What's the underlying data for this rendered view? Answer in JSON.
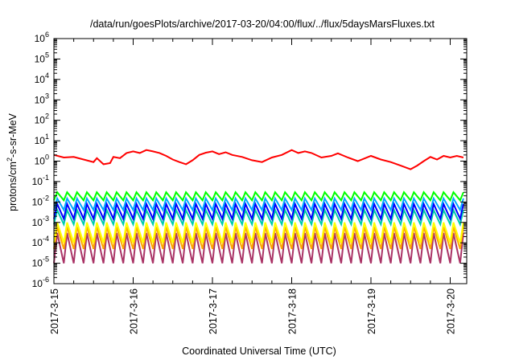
{
  "chart_data": {
    "type": "line",
    "title": "/data/run/goesPlots/archive/2017-03-20/04:00/flux/../flux/5daysMarsFluxes.txt",
    "xlabel": "Coordinated Universal Time (UTC)",
    "ylabel": {
      "base": "protons/cm",
      "sup": "2",
      "tail": "-s-sr-MeV"
    },
    "yscale": "log",
    "xlim": [
      "2017-03-15T00:00",
      "2017-03-20T05:00"
    ],
    "ylim": [
      1e-06,
      1000000.0
    ],
    "x_ticks": [
      "2017-3-15",
      "2017-3-16",
      "2017-3-17",
      "2017-3-18",
      "2017-3-19",
      "2017-3-20"
    ],
    "y_ticks": [
      {
        "value": 1e-06,
        "base": "10",
        "exp": "-6"
      },
      {
        "value": 1e-05,
        "base": "10",
        "exp": "-5"
      },
      {
        "value": 0.0001,
        "base": "10",
        "exp": "-4"
      },
      {
        "value": 0.001,
        "base": "10",
        "exp": "-3"
      },
      {
        "value": 0.01,
        "base": "10",
        "exp": "-2"
      },
      {
        "value": 0.1,
        "base": "10",
        "exp": "-1"
      },
      {
        "value": 1,
        "base": "10",
        "exp": "0"
      },
      {
        "value": 10,
        "base": "10",
        "exp": "1"
      },
      {
        "value": 100,
        "base": "10",
        "exp": "2"
      },
      {
        "value": 1000,
        "base": "10",
        "exp": "3"
      },
      {
        "value": 10000,
        "base": "10",
        "exp": "4"
      },
      {
        "value": 100000,
        "base": "10",
        "exp": "5"
      },
      {
        "value": 1000000,
        "base": "10",
        "exp": "6"
      }
    ],
    "grid": false,
    "legend": "none",
    "series": [
      {
        "color": "#ff0000",
        "points": [
          [
            "2017-03-15T00:00",
            2.0
          ],
          [
            "2017-03-15T03:00",
            1.5
          ],
          [
            "2017-03-15T06:00",
            1.6
          ],
          [
            "2017-03-15T09:00",
            1.2
          ],
          [
            "2017-03-15T12:00",
            0.9
          ],
          [
            "2017-03-15T13:00",
            1.4
          ],
          [
            "2017-03-15T15:00",
            0.7
          ],
          [
            "2017-03-15T17:00",
            0.8
          ],
          [
            "2017-03-15T18:00",
            1.6
          ],
          [
            "2017-03-15T20:00",
            1.4
          ],
          [
            "2017-03-15T22:00",
            2.5
          ],
          [
            "2017-03-16T00:00",
            3.0
          ],
          [
            "2017-03-16T02:00",
            2.5
          ],
          [
            "2017-03-16T04:00",
            3.5
          ],
          [
            "2017-03-16T06:00",
            3.0
          ],
          [
            "2017-03-16T08:00",
            2.5
          ],
          [
            "2017-03-16T10:00",
            1.8
          ],
          [
            "2017-03-16T12:00",
            1.2
          ],
          [
            "2017-03-16T14:00",
            0.9
          ],
          [
            "2017-03-16T16:00",
            0.7
          ],
          [
            "2017-03-16T18:00",
            1.1
          ],
          [
            "2017-03-16T20:00",
            2.0
          ],
          [
            "2017-03-16T22:00",
            2.6
          ],
          [
            "2017-03-17T00:00",
            3.0
          ],
          [
            "2017-03-17T02:00",
            2.2
          ],
          [
            "2017-03-17T04:00",
            2.7
          ],
          [
            "2017-03-17T06:00",
            2.0
          ],
          [
            "2017-03-17T09:00",
            1.6
          ],
          [
            "2017-03-17T12:00",
            1.1
          ],
          [
            "2017-03-17T15:00",
            0.9
          ],
          [
            "2017-03-17T18:00",
            1.5
          ],
          [
            "2017-03-17T21:00",
            2.0
          ],
          [
            "2017-03-18T00:00",
            3.5
          ],
          [
            "2017-03-18T02:00",
            2.5
          ],
          [
            "2017-03-18T04:00",
            3.0
          ],
          [
            "2017-03-18T06:00",
            2.5
          ],
          [
            "2017-03-18T09:00",
            1.5
          ],
          [
            "2017-03-18T12:00",
            1.8
          ],
          [
            "2017-03-18T14:00",
            2.4
          ],
          [
            "2017-03-18T17:00",
            1.5
          ],
          [
            "2017-03-18T20:00",
            1.0
          ],
          [
            "2017-03-19T00:00",
            1.8
          ],
          [
            "2017-03-19T03:00",
            1.2
          ],
          [
            "2017-03-19T06:00",
            0.9
          ],
          [
            "2017-03-19T09:00",
            0.6
          ],
          [
            "2017-03-19T12:00",
            0.4
          ],
          [
            "2017-03-19T14:00",
            0.6
          ],
          [
            "2017-03-19T16:00",
            1.0
          ],
          [
            "2017-03-19T18:00",
            1.6
          ],
          [
            "2017-03-19T20:00",
            1.2
          ],
          [
            "2017-03-19T22:00",
            1.8
          ],
          [
            "2017-03-20T00:00",
            1.5
          ],
          [
            "2017-03-20T02:00",
            1.8
          ],
          [
            "2017-03-20T04:00",
            1.5
          ]
        ]
      },
      {
        "color": "#00ff00",
        "sawtooth": {
          "period_hours": 3,
          "peak": 0.03,
          "trough": 0.012
        }
      },
      {
        "color": "#00aaff",
        "sawtooth": {
          "period_hours": 3,
          "peak": 0.015,
          "trough": 0.004
        }
      },
      {
        "color": "#0000ff",
        "sawtooth": {
          "period_hours": 3,
          "peak": 0.008,
          "trough": 0.0015
        }
      },
      {
        "color": "#00ccaa",
        "sawtooth": {
          "period_hours": 3,
          "peak": 0.004,
          "trough": 0.0008
        }
      },
      {
        "color": "#ffff00",
        "sawtooth": {
          "period_hours": 3,
          "peak": 0.001,
          "trough": 0.0001
        }
      },
      {
        "color": "#ffaa00",
        "sawtooth": {
          "period_hours": 3,
          "peak": 0.0006,
          "trough": 5e-05
        }
      },
      {
        "color": "#aa3366",
        "sawtooth": {
          "period_hours": 3,
          "peak": 0.0003,
          "trough": 1e-05
        }
      }
    ]
  }
}
